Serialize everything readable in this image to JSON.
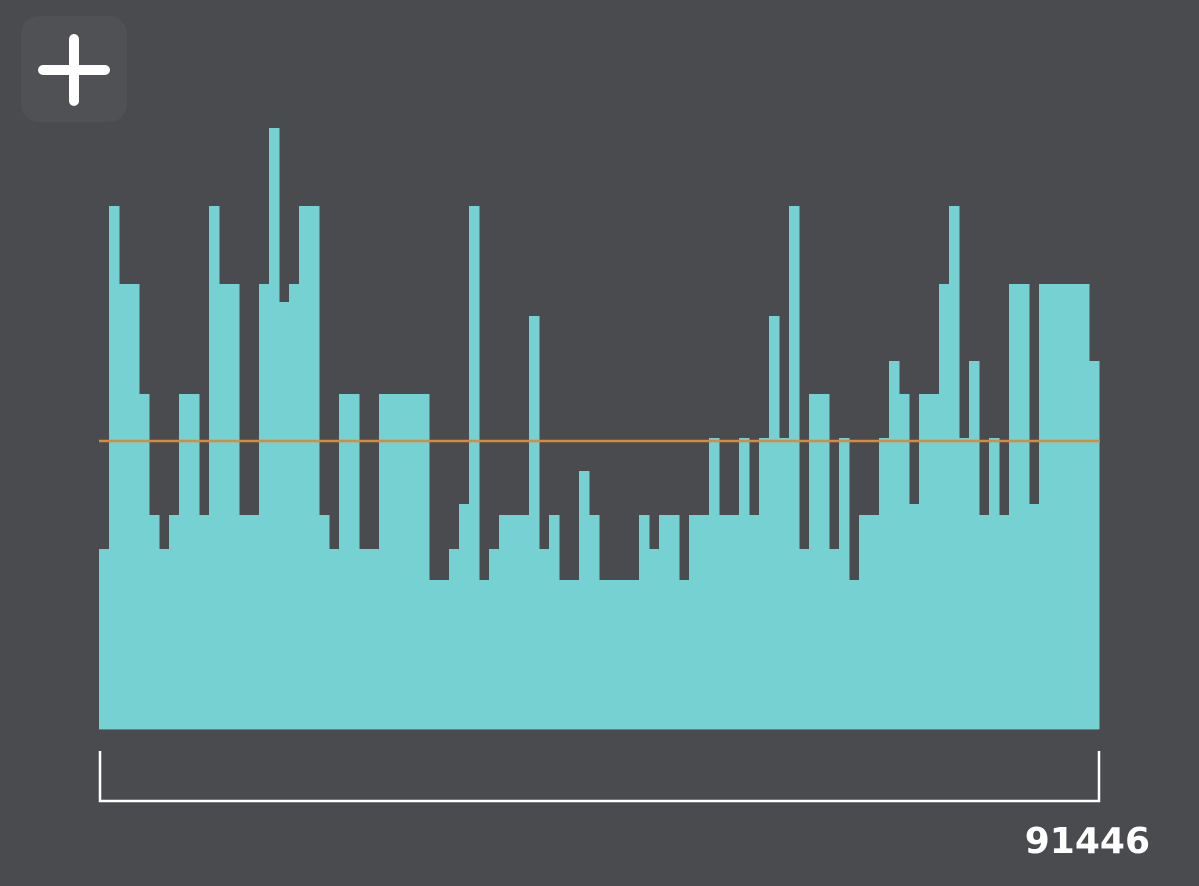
{
  "chart_data": {
    "type": "bar",
    "values": [
      180,
      523,
      445,
      445,
      335,
      214,
      180,
      214,
      335,
      335,
      214,
      523,
      445,
      445,
      214,
      214,
      445,
      601,
      427,
      445,
      523,
      523,
      214,
      180,
      335,
      335,
      180,
      180,
      335,
      335,
      335,
      335,
      335,
      149,
      149,
      180,
      225,
      523,
      149,
      180,
      214,
      214,
      214,
      413,
      180,
      214,
      149,
      149,
      258,
      214,
      149,
      149,
      149,
      149,
      214,
      180,
      214,
      214,
      149,
      214,
      214,
      291,
      214,
      214,
      291,
      214,
      291,
      413,
      291,
      523,
      180,
      335,
      335,
      180,
      291,
      149,
      214,
      214,
      291,
      368,
      335,
      225,
      335,
      335,
      445,
      523,
      291,
      368,
      214,
      291,
      214,
      445,
      445,
      225,
      445,
      445,
      445,
      445,
      445,
      368
    ],
    "color": "#76d1d3",
    "ylim": [
      0,
      729
    ],
    "mean_line": {
      "value": 288,
      "color": "#d98a3a"
    },
    "x_end_label": "91446"
  }
}
